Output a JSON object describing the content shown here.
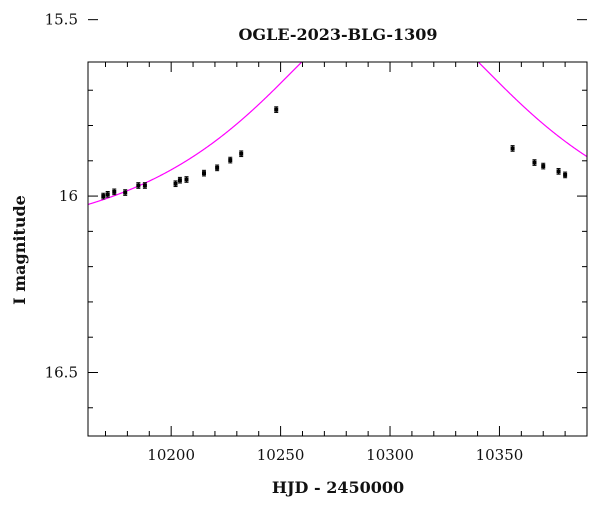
{
  "chart_data": {
    "type": "scatter",
    "title": "OGLE-2023-BLG-1309",
    "xlabel": "HJD - 2450000",
    "ylabel": "I magnitude",
    "xlim": [
      10162,
      10390
    ],
    "ylim": [
      16.68,
      15.62
    ],
    "y_inverted": true,
    "grid": false,
    "legend": "none",
    "x_ticks": [
      10200,
      10250,
      10300,
      10350
    ],
    "x_tick_labels": [
      "10200",
      "10250",
      "10300",
      "10350"
    ],
    "y_ticks": [
      15.5,
      16,
      16.5
    ],
    "y_tick_labels": [
      "15.5",
      "16",
      "16.5"
    ],
    "series": [
      {
        "kind": "points",
        "color": "#000000",
        "x": [
          10169,
          10171,
          10174,
          10179,
          10185,
          10188,
          10202,
          10204,
          10207,
          10215,
          10221,
          10227,
          10232,
          10248,
          10356,
          10366,
          10370,
          10377,
          10380
        ],
        "y": [
          16.0,
          15.995,
          15.988,
          15.99,
          15.97,
          15.97,
          15.965,
          15.955,
          15.953,
          15.935,
          15.92,
          15.898,
          15.88,
          15.755,
          15.865,
          15.905,
          15.915,
          15.93,
          15.94
        ],
        "yerr": [
          0.008,
          0.008,
          0.008,
          0.008,
          0.008,
          0.008,
          0.008,
          0.008,
          0.008,
          0.008,
          0.008,
          0.008,
          0.008,
          0.008,
          0.008,
          0.008,
          0.008,
          0.008,
          0.008
        ]
      },
      {
        "kind": "model",
        "color": "#ff00ff",
        "t0": 10300,
        "tE": 95,
        "u0": 0.6,
        "I_base": 16.145
      }
    ]
  }
}
